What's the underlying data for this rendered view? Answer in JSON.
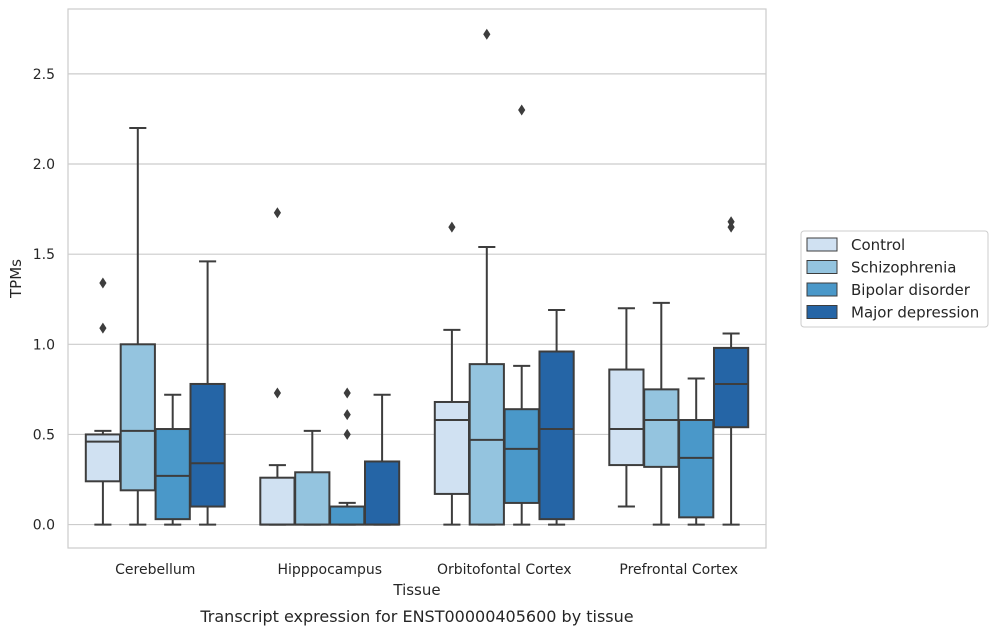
{
  "chart_data": {
    "type": "boxplot",
    "title": "",
    "caption": "Transcript expression for ENST00000405600 by tissue",
    "xlabel": "Tissue",
    "ylabel": "TPMs",
    "ylim": [
      -0.13,
      2.86
    ],
    "yticks": [
      0.0,
      0.5,
      1.0,
      1.5,
      2.0,
      2.5
    ],
    "ytick_labels": [
      "0.0",
      "0.5",
      "1.0",
      "1.5",
      "2.0",
      "2.5"
    ],
    "grid": "horizontal",
    "legend_position": "right",
    "categories": [
      "Cerebellum",
      "Hipppocampus",
      "Orbitofontal Cortex",
      "Prefrontal Cortex"
    ],
    "series": [
      {
        "name": "Control",
        "color": "#d0e1f2",
        "boxes": [
          {
            "whislo": 0.0,
            "q1": 0.24,
            "med": 0.46,
            "q3": 0.5,
            "whishi": 0.52,
            "fliers": [
              1.09,
              1.34
            ]
          },
          {
            "whislo": 0.0,
            "q1": 0.0,
            "med": 0.0,
            "q3": 0.26,
            "whishi": 0.33,
            "fliers": [
              0.73,
              1.73
            ]
          },
          {
            "whislo": 0.0,
            "q1": 0.17,
            "med": 0.58,
            "q3": 0.68,
            "whishi": 1.08,
            "fliers": [
              1.65
            ]
          },
          {
            "whislo": 0.1,
            "q1": 0.33,
            "med": 0.53,
            "q3": 0.86,
            "whishi": 1.2,
            "fliers": []
          }
        ]
      },
      {
        "name": "Schizophrenia",
        "color": "#94c4df",
        "boxes": [
          {
            "whislo": 0.0,
            "q1": 0.19,
            "med": 0.52,
            "q3": 1.0,
            "whishi": 2.2,
            "fliers": []
          },
          {
            "whislo": 0.0,
            "q1": 0.0,
            "med": 0.0,
            "q3": 0.29,
            "whishi": 0.52,
            "fliers": []
          },
          {
            "whislo": 0.0,
            "q1": 0.0,
            "med": 0.47,
            "q3": 0.89,
            "whishi": 1.54,
            "fliers": [
              2.72
            ]
          },
          {
            "whislo": 0.0,
            "q1": 0.32,
            "med": 0.58,
            "q3": 0.75,
            "whishi": 1.23,
            "fliers": []
          }
        ]
      },
      {
        "name": "Bipolar disorder",
        "color": "#4a98c9",
        "boxes": [
          {
            "whislo": 0.0,
            "q1": 0.03,
            "med": 0.27,
            "q3": 0.53,
            "whishi": 0.72,
            "fliers": []
          },
          {
            "whislo": 0.0,
            "q1": 0.0,
            "med": 0.0,
            "q3": 0.1,
            "whishi": 0.12,
            "fliers": [
              0.5,
              0.61,
              0.73
            ]
          },
          {
            "whislo": 0.0,
            "q1": 0.12,
            "med": 0.42,
            "q3": 0.64,
            "whishi": 0.88,
            "fliers": [
              2.3
            ]
          },
          {
            "whislo": 0.0,
            "q1": 0.04,
            "med": 0.37,
            "q3": 0.58,
            "whishi": 0.81,
            "fliers": []
          }
        ]
      },
      {
        "name": "Major depression",
        "color": "#2565a6",
        "boxes": [
          {
            "whislo": 0.0,
            "q1": 0.1,
            "med": 0.34,
            "q3": 0.78,
            "whishi": 1.46,
            "fliers": []
          },
          {
            "whislo": 0.0,
            "q1": 0.0,
            "med": 0.0,
            "q3": 0.35,
            "whishi": 0.72,
            "fliers": []
          },
          {
            "whislo": 0.0,
            "q1": 0.03,
            "med": 0.53,
            "q3": 0.96,
            "whishi": 1.19,
            "fliers": []
          },
          {
            "whislo": 0.0,
            "q1": 0.54,
            "med": 0.78,
            "q3": 0.98,
            "whishi": 1.06,
            "fliers": [
              1.65,
              1.68
            ]
          }
        ]
      }
    ]
  }
}
